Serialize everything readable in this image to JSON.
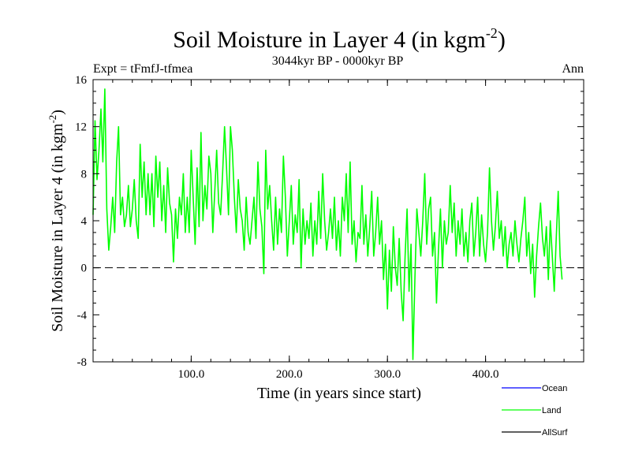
{
  "chart_data": {
    "type": "line",
    "title": "Soil Moisture in Layer 4 (in kgm",
    "title_sup": "-2",
    "title_close": ")",
    "subtitle": "3044kyr BP - 0000kyr BP",
    "left_label": "Expt = tFmfJ-tfmea",
    "right_label": "Ann",
    "xlabel": "Time (in years since start)",
    "ylabel": "Soil Moisture in Layer 4 (in kgm",
    "ylabel_sup": "-2",
    "ylabel_close": ")",
    "xlim": [
      0,
      500
    ],
    "ylim": [
      -8,
      16
    ],
    "xticks": [
      100,
      200,
      300,
      400
    ],
    "xtick_labels": [
      "100.0",
      "200.0",
      "300.0",
      "400.0"
    ],
    "yticks": [
      -8,
      -4,
      0,
      4,
      8,
      12,
      16
    ],
    "ytick_labels": [
      "-8",
      "-4",
      "0",
      "4",
      "8",
      "12",
      "16"
    ],
    "zero_line": 0,
    "legend": [
      {
        "name": "Ocean",
        "color": "#0000ff"
      },
      {
        "name": "Land",
        "color": "#00ff00"
      },
      {
        "name": "AllSurf",
        "color": "#000000"
      }
    ],
    "series": [
      {
        "name": "Land",
        "color": "#00ff00",
        "x_start": 0,
        "x_step": 2,
        "values": [
          4.5,
          12.5,
          7.5,
          10,
          13.5,
          9,
          15.2,
          5,
          1.5,
          3.5,
          6,
          3,
          9,
          12,
          4.5,
          6,
          3.5,
          4.5,
          7,
          3.5,
          5,
          7.5,
          4,
          2.5,
          10.5,
          6,
          9,
          4.5,
          8,
          4.5,
          8,
          3.5,
          9.5,
          6,
          9,
          4,
          7,
          3,
          8.5,
          5.5,
          4.5,
          0.5,
          5,
          2.5,
          6,
          4.5,
          8,
          3,
          6,
          3,
          10,
          6,
          2,
          8.5,
          3.5,
          11.5,
          4,
          7,
          5,
          9.5,
          8,
          3,
          6.5,
          10,
          5.5,
          4.5,
          8,
          12,
          8.5,
          4.5,
          12,
          10,
          6,
          3,
          7.5,
          5,
          4,
          1.5,
          6,
          3,
          2,
          4,
          6,
          2.5,
          9,
          5,
          3.5,
          -0.5,
          10,
          5,
          7,
          4,
          1.5,
          6,
          2,
          5,
          3,
          9.5,
          6,
          1,
          4,
          7,
          2,
          4.5,
          3,
          7.5,
          0,
          5,
          2,
          4,
          2.5,
          5.5,
          1,
          4,
          2,
          6.5,
          2.5,
          8,
          4,
          1.5,
          3,
          5,
          2.5,
          6,
          1.5,
          4,
          1,
          6,
          4,
          8,
          3,
          9,
          2,
          4,
          0.5,
          3,
          2.5,
          7,
          2,
          4.5,
          1,
          3.5,
          6.5,
          1,
          3,
          6,
          2,
          4,
          -1,
          2,
          -3.5,
          1.5,
          -2,
          3.5,
          0,
          -1.5,
          2.5,
          -2,
          -4.5,
          1,
          5,
          -2,
          2,
          -7.8,
          -1,
          5,
          3,
          1,
          4,
          8,
          2,
          5,
          6,
          1,
          3,
          -3,
          1.5,
          5,
          0,
          4,
          2,
          3,
          7,
          3,
          5.5,
          1,
          4,
          2,
          5,
          1,
          3,
          0.5,
          4,
          5.5,
          1,
          3,
          6,
          1,
          4.5,
          2,
          0.5,
          3,
          8.5,
          4,
          1.5,
          3.5,
          6.5,
          2.5,
          4,
          1,
          3.5,
          0,
          2,
          3,
          1,
          4,
          2,
          0.5,
          2.5,
          4,
          6,
          1,
          3,
          -0.5,
          2,
          -2.5,
          1,
          3.5,
          5.5,
          2.5,
          1,
          3.5,
          -1,
          4,
          1,
          -2,
          2.5,
          6.5,
          1,
          -1
        ]
      }
    ]
  }
}
